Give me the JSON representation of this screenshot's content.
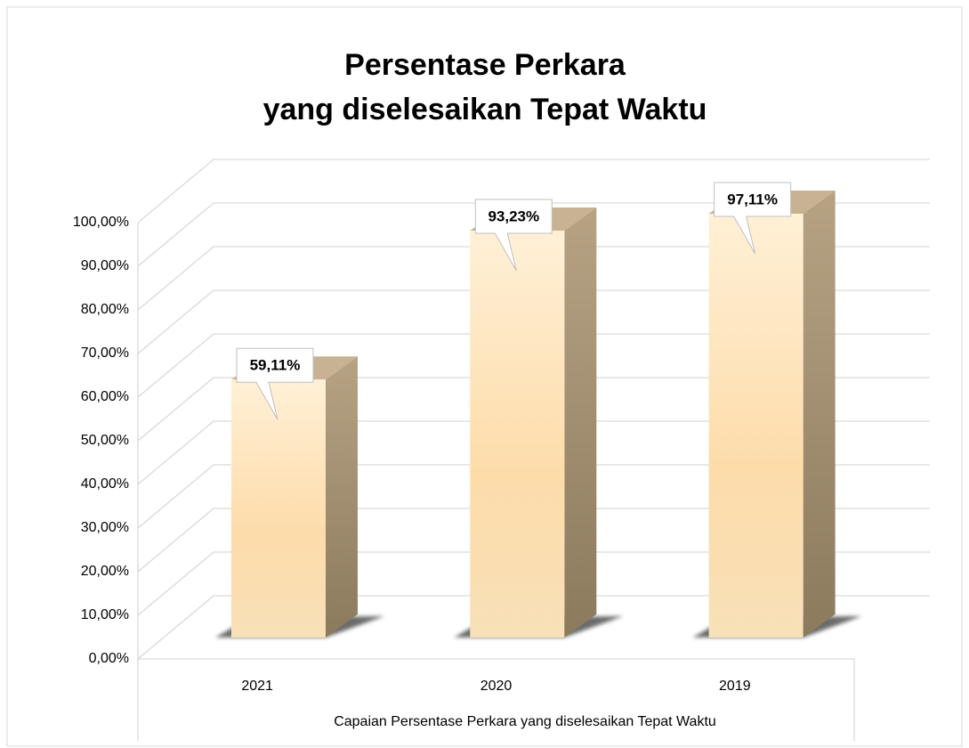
{
  "chart_data": {
    "type": "bar3d",
    "title": [
      "Persentase Perkara",
      "yang diselesaikan Tepat Waktu"
    ],
    "x_label": "Capaian Persentase Perkara yang diselesaikan Tepat Waktu",
    "categories": [
      "2021",
      "2020",
      "2019"
    ],
    "values": [
      59.11,
      93.23,
      97.11
    ],
    "value_labels": [
      "59,11%",
      "93,23%",
      "97,11%"
    ],
    "color": "#fde3b8",
    "ylim": [
      0,
      100
    ],
    "yticks": [
      {
        "value": 0,
        "label": "0,00%"
      },
      {
        "value": 10,
        "label": "10,00%"
      },
      {
        "value": 20,
        "label": "20,00%"
      },
      {
        "value": 30,
        "label": "30,00%"
      },
      {
        "value": 40,
        "label": "40,00%"
      },
      {
        "value": 50,
        "label": "50,00%"
      },
      {
        "value": 60,
        "label": "60,00%"
      },
      {
        "value": 70,
        "label": "70,00%"
      },
      {
        "value": 80,
        "label": "80,00%"
      },
      {
        "value": 90,
        "label": "90,00%"
      },
      {
        "value": 100,
        "label": "100,00%"
      }
    ],
    "grid": true
  }
}
